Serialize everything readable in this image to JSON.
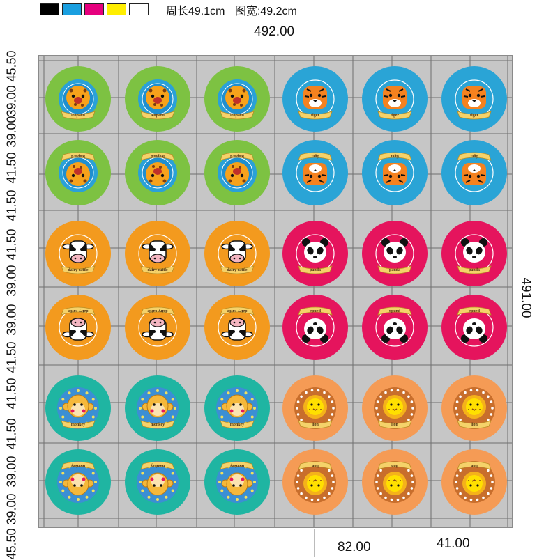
{
  "header": {
    "swatch_colors": [
      "#000000",
      "#1a9fe0",
      "#e6007e",
      "#ffee00",
      "#ffffff"
    ],
    "perimeter_label": "周长49.1cm",
    "width_label": "图宽:49.2cm"
  },
  "dimensions": {
    "top": "492.00",
    "right": "491.00",
    "bottom_a": "82.00",
    "bottom_b": "41.00",
    "left": [
      "45.50",
      "39.00",
      "39.00",
      "41.50",
      "41.50",
      "41.50",
      "39.00",
      "39.00",
      "41.50",
      "41.50",
      "41.50",
      "39.00",
      "39.00",
      "45.50"
    ]
  },
  "stickers": [
    {
      "animal": "leopard",
      "label": "leopard",
      "bg": "#7dc242",
      "inner": "#2aa1d8",
      "face": "#f7a21b",
      "flipped": false,
      "icon": "leopard-face-icon"
    },
    {
      "animal": "tiger",
      "label": "tiger",
      "bg": "#2aa4d6",
      "inner": "#2aa4d6",
      "face": "#f5821f",
      "flipped": false,
      "icon": "tiger-face-icon"
    },
    {
      "animal": "dairy cattle",
      "label": "dairy cattle",
      "bg": "#f39a1e",
      "inner": "#f39a1e",
      "face": "#ffffff",
      "flipped": false,
      "icon": "cow-face-icon"
    },
    {
      "animal": "panda",
      "label": "panda",
      "bg": "#e5145d",
      "inner": "#e5145d",
      "face": "#ffffff",
      "flipped": false,
      "icon": "panda-face-icon"
    },
    {
      "animal": "monkey",
      "label": "monkey",
      "bg": "#1fb5a2",
      "inner": "#3b8fd4",
      "face": "#f5b83a",
      "flipped": false,
      "icon": "monkey-face-icon"
    },
    {
      "animal": "lion",
      "label": "lion",
      "bg": "#f59b55",
      "inner": "#c86e2c",
      "face": "#ffe000",
      "flipped": false,
      "icon": "lion-face-icon"
    }
  ],
  "layout_rows": [
    {
      "left": "leopard",
      "right": "tiger",
      "flipped": false
    },
    {
      "left": "leopard",
      "right": "tiger",
      "flipped": true
    },
    {
      "left": "dairy cattle",
      "right": "panda",
      "flipped": false
    },
    {
      "left": "dairy cattle",
      "right": "panda",
      "flipped": true
    },
    {
      "left": "monkey",
      "right": "lion",
      "flipped": false
    },
    {
      "left": "monkey",
      "right": "lion",
      "flipped": true
    }
  ]
}
